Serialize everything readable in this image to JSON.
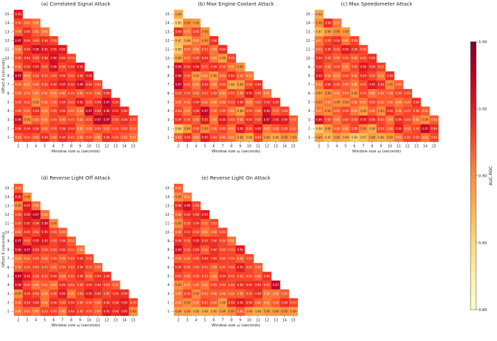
{
  "figure": {
    "colorbar_label": "AUC-ROC",
    "colorbar_ticks": [
      0.8,
      0.85,
      0.9,
      0.95,
      1.0
    ],
    "colormap": [
      "#ffffcc",
      "#fff0a8",
      "#fed976",
      "#feb24c",
      "#fd8d3c",
      "#fc4e2a",
      "#e31a1c",
      "#bd0026",
      "#800026"
    ],
    "vmin": 0.8,
    "vmax": 1.0
  },
  "chart_data": [
    {
      "type": "heatmap",
      "title": "(a) Correlated Signal Attack",
      "xlabel": "Window size ω (seconds)",
      "ylabel": "Offset δ (seconds)",
      "x": [
        2,
        3,
        4,
        5,
        6,
        7,
        8,
        9,
        10,
        11,
        12,
        13,
        14,
        15
      ],
      "y": [
        1,
        2,
        3,
        4,
        5,
        6,
        7,
        8,
        9,
        10,
        11,
        12,
        13,
        14,
        15
      ],
      "rows": [
        [
          0.92,
          0.93,
          0.92,
          0.94,
          0.92,
          0.94,
          0.93,
          0.92,
          0.93,
          0.91,
          0.94,
          0.93,
          0.92,
          0.91
        ],
        [
          0.94,
          0.94,
          0.94,
          0.92,
          0.93,
          0.94,
          0.94,
          0.91,
          0.92,
          0.93,
          0.92,
          0.93,
          0.93,
          0.92
        ],
        [
          0.96,
          0.9,
          0.92,
          0.91,
          0.93,
          0.92,
          0.93,
          0.92,
          0.93,
          0.97,
          0.97,
          0.93,
          0.94,
          0.93
        ],
        [
          0.93,
          0.92,
          0.94,
          0.91,
          0.93,
          0.94,
          0.92,
          0.91,
          0.97,
          0.94,
          0.96,
          0.95,
          0.94
        ],
        [
          0.93,
          0.93,
          0.9,
          0.92,
          0.92,
          0.94,
          0.93,
          0.95,
          0.93,
          0.94,
          0.97,
          0.94
        ],
        [
          0.92,
          0.92,
          0.91,
          0.92,
          0.91,
          0.92,
          0.93,
          0.92,
          0.93,
          0.92,
          0.94
        ],
        [
          0.92,
          0.91,
          0.92,
          0.93,
          0.94,
          0.95,
          0.94,
          0.96,
          0.94,
          0.93
        ],
        [
          0.97,
          0.91,
          0.93,
          0.93,
          0.93,
          0.94,
          0.93,
          0.94,
          0.95
        ],
        [
          0.92,
          0.94,
          0.95,
          0.93,
          0.96,
          0.93,
          0.94,
          0.95
        ],
        [
          0.93,
          0.94,
          0.93,
          0.94,
          0.96,
          0.94,
          0.93
        ],
        [
          0.91,
          0.94,
          0.96,
          0.95,
          0.95,
          0.95
        ],
        [
          0.97,
          0.94,
          0.93,
          0.94,
          0.93
        ],
        [
          0.92,
          0.94,
          0.92,
          0.91
        ],
        [
          0.93,
          0.92,
          0.91
        ],
        [
          0.95
        ]
      ]
    },
    {
      "type": "heatmap",
      "title": "(b) Max Engine Coolant Attack",
      "xlabel": "Window size ω (seconds)",
      "ylabel": "Offset δ (seconds)",
      "x": [
        2,
        3,
        4,
        5,
        6,
        7,
        8,
        9,
        10,
        11,
        12,
        13,
        14,
        15
      ],
      "y": [
        1,
        2,
        3,
        4,
        5,
        6,
        7,
        8,
        9,
        10,
        11,
        12,
        13,
        14,
        15
      ],
      "rows": [
        [
          0.92,
          0.94,
          0.91,
          0.95,
          0.93,
          0.92,
          0.91,
          0.89,
          0.88,
          0.93,
          0.89,
          0.88,
          0.9,
          0.89
        ],
        [
          0.86,
          0.89,
          0.93,
          0.9,
          0.92,
          0.93,
          0.91,
          0.95,
          0.93,
          0.95,
          0.91,
          0.92,
          0.93,
          0.92
        ],
        [
          0.94,
          0.93,
          0.92,
          0.95,
          0.91,
          0.95,
          0.93,
          0.92,
          0.94,
          0.93,
          0.97,
          0.95,
          0.95,
          0.92
        ],
        [
          0.93,
          0.91,
          0.94,
          0.97,
          0.92,
          0.93,
          0.91,
          0.89,
          0.93,
          0.92,
          0.96,
          0.92,
          0.93
        ],
        [
          0.92,
          0.92,
          0.94,
          0.92,
          0.91,
          0.92,
          0.93,
          0.94,
          0.91,
          0.93,
          0.94,
          0.94
        ],
        [
          0.93,
          0.93,
          0.92,
          0.93,
          0.93,
          0.91,
          0.93,
          0.92,
          0.95,
          0.93,
          0.91
        ],
        [
          0.97,
          0.93,
          0.91,
          0.94,
          0.91,
          0.93,
          0.88,
          0.89,
          0.93,
          0.94
        ],
        [
          0.96,
          0.93,
          0.89,
          0.91,
          0.89,
          0.92,
          0.94,
          0.92,
          0.91
        ],
        [
          0.96,
          0.94,
          0.95,
          0.93,
          0.94,
          0.93,
          0.91,
          0.9
        ],
        [
          0.89,
          0.92,
          0.93,
          0.94,
          0.91,
          0.89,
          0.93
        ],
        [
          0.86,
          0.92,
          0.91,
          0.93,
          0.91,
          0.94
        ],
        [
          0.87,
          0.88,
          0.91,
          0.9,
          0.94
        ],
        [
          0.94,
          0.91,
          0.93,
          0.9
        ],
        [
          0.85,
          0.9,
          0.89
        ],
        [
          0.88
        ]
      ]
    },
    {
      "type": "heatmap",
      "title": "(c) Max Speedometer Attack",
      "xlabel": "Window size ω (seconds)",
      "ylabel": "Offset δ (seconds)",
      "x": [
        2,
        3,
        4,
        5,
        6,
        7,
        8,
        9,
        10,
        11,
        12,
        13,
        14,
        15
      ],
      "y": [
        1,
        2,
        3,
        4,
        5,
        6,
        7,
        8,
        9,
        10,
        11,
        12,
        13,
        14,
        15
      ],
      "rows": [
        [
          0.89,
          0.87,
          0.89,
          0.88,
          0.86,
          0.87,
          0.89,
          0.88,
          0.89,
          0.91,
          0.93,
          0.93,
          0.91,
          0.93
        ],
        [
          0.86,
          0.89,
          0.92,
          0.91,
          0.93,
          0.9,
          0.88,
          0.93,
          0.92,
          0.95,
          0.92,
          0.93,
          0.97,
          0.94
        ],
        [
          0.96,
          0.93,
          0.91,
          0.93,
          0.93,
          0.95,
          0.94,
          0.93,
          0.91,
          0.94,
          0.93,
          0.91,
          0.9,
          0.92
        ],
        [
          0.91,
          0.9,
          0.92,
          0.93,
          0.91,
          0.89,
          0.92,
          0.9,
          0.94,
          0.92,
          0.93,
          0.93,
          0.92
        ],
        [
          0.9,
          0.91,
          0.9,
          0.9,
          0.92,
          0.91,
          0.93,
          0.92,
          0.92,
          0.91,
          0.92,
          0.94
        ],
        [
          0.89,
          0.9,
          0.91,
          0.92,
          0.9,
          0.93,
          0.91,
          0.92,
          0.92,
          0.93,
          0.93
        ],
        [
          0.91,
          0.94,
          0.93,
          0.92,
          0.91,
          0.93,
          0.95,
          0.94,
          0.9,
          0.92
        ],
        [
          0.95,
          0.92,
          0.91,
          0.93,
          0.92,
          0.94,
          0.93,
          0.91,
          0.94
        ],
        [
          0.94,
          0.92,
          0.93,
          0.91,
          0.93,
          0.95,
          0.94,
          0.93
        ],
        [
          0.94,
          0.93,
          0.92,
          0.93,
          0.92,
          0.93,
          0.94
        ],
        [
          0.92,
          0.94,
          0.93,
          0.95,
          0.94,
          0.93
        ],
        [
          0.91,
          0.93,
          0.94,
          0.91,
          0.93
        ],
        [
          0.87,
          0.89,
          0.9,
          0.89
        ],
        [
          0.9,
          0.94,
          0.91
        ],
        [
          0.88
        ]
      ]
    },
    {
      "type": "heatmap",
      "title": "(d) Reverse Light Off Attack",
      "xlabel": "Window size ω (seconds)",
      "ylabel": "Offset δ (seconds)",
      "x": [
        2,
        3,
        4,
        5,
        6,
        7,
        8,
        9,
        10,
        11,
        12,
        13,
        14,
        15
      ],
      "y": [
        1,
        2,
        3,
        4,
        5,
        6,
        7,
        8,
        9,
        10,
        11,
        12,
        13,
        14,
        15
      ],
      "rows": [
        [
          0.91,
          0.92,
          0.91,
          0.93,
          0.93,
          0.91,
          0.94,
          0.93,
          0.93,
          0.92,
          0.95,
          0.94,
          0.95,
          0.9
        ],
        [
          0.92,
          0.94,
          0.94,
          0.91,
          0.94,
          0.93,
          0.94,
          0.93,
          0.93,
          0.92,
          0.94,
          0.94,
          0.95,
          0.93
        ],
        [
          0.9,
          0.94,
          0.93,
          0.91,
          0.93,
          0.95,
          0.91,
          0.93,
          0.95,
          0.94,
          0.93,
          0.94,
          0.94
        ],
        [
          0.96,
          0.93,
          0.91,
          0.92,
          0.91,
          0.94,
          0.93,
          0.93,
          0.94,
          0.94,
          0.93,
          0.92
        ],
        [
          0.97,
          0.95,
          0.93,
          0.93,
          0.94,
          0.92,
          0.93,
          0.94,
          0.92,
          0.94,
          0.94
        ],
        [
          0.92,
          0.93,
          0.93,
          0.93,
          0.92,
          0.93,
          0.93,
          0.94,
          0.93,
          0.92
        ],
        [
          0.91,
          0.92,
          0.93,
          0.92,
          0.93,
          0.92,
          0.93,
          0.94,
          0.93
        ],
        [
          0.96,
          0.97,
          0.94,
          0.93,
          0.93,
          0.94,
          0.93,
          0.91
        ],
        [
          0.97,
          0.93,
          0.95,
          0.95,
          0.93,
          0.94,
          0.92
        ],
        [
          0.92,
          0.94,
          0.93,
          0.95,
          0.93,
          0.92
        ],
        [
          0.93,
          0.95,
          0.94,
          0.96,
          0.9
        ],
        [
          0.93,
          0.95,
          0.97,
          0.91
        ],
        [
          0.9,
          0.95,
          0.91
        ],
        [
          0.95,
          0.9
        ],
        [
          0.92
        ]
      ]
    },
    {
      "type": "heatmap",
      "title": "(e) Reverse Light On Attack",
      "xlabel": "Window size ω (seconds)",
      "ylabel": "Offset δ (seconds)",
      "x": [
        2,
        3,
        4,
        5,
        6,
        7,
        8,
        9,
        10,
        11,
        12,
        13,
        14,
        15
      ],
      "y": [
        1,
        2,
        3,
        4,
        5,
        6,
        7,
        8,
        9,
        10,
        11,
        12,
        13,
        14,
        15
      ],
      "rows": [
        [
          0.89,
          0.89,
          0.88,
          0.88,
          0.88,
          0.89,
          0.9,
          0.92,
          0.89,
          0.88,
          0.89,
          0.89,
          0.9,
          0.89
        ],
        [
          0.91,
          0.9,
          0.91,
          0.93,
          0.92,
          0.89,
          0.94,
          0.95,
          0.94,
          0.92,
          0.91,
          0.92,
          0.94,
          0.93
        ],
        [
          0.91,
          0.93,
          0.9,
          0.92,
          0.92,
          0.92,
          0.92,
          0.92,
          0.93,
          0.94,
          0.91,
          0.91,
          0.92
        ],
        [
          0.9,
          0.91,
          0.92,
          0.91,
          0.93,
          0.93,
          0.93,
          0.94,
          0.94,
          0.94,
          0.93,
          0.97
        ],
        [
          0.93,
          0.92,
          0.93,
          0.93,
          0.91,
          0.94,
          0.93,
          0.93,
          0.93,
          0.92,
          0.94
        ],
        [
          0.94,
          0.93,
          0.93,
          0.93,
          0.92,
          0.93,
          0.93,
          0.95,
          0.93,
          0.92
        ],
        [
          0.92,
          0.92,
          0.93,
          0.94,
          0.94,
          0.93,
          0.93,
          0.92,
          0.93
        ],
        [
          0.96,
          0.93,
          0.94,
          0.92,
          0.94,
          0.93,
          0.93,
          0.95
        ],
        [
          0.94,
          0.93,
          0.95,
          0.94,
          0.94,
          0.93,
          0.91
        ],
        [
          0.92,
          0.94,
          0.93,
          0.91,
          0.92,
          0.93
        ],
        [
          0.9,
          0.93,
          0.94,
          0.92,
          0.93
        ],
        [
          0.92,
          0.94,
          0.94,
          0.95
        ],
        [
          0.94,
          0.96,
          0.93
        ],
        [
          0.9,
          0.91
        ],
        [
          0.92
        ]
      ]
    }
  ]
}
